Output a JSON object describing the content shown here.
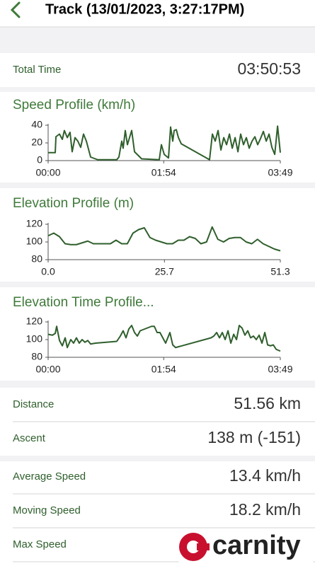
{
  "header": {
    "title": "Track (13/01/2023, 3:27:17PM)"
  },
  "total_time": {
    "label": "Total Time",
    "value": "03:50:53"
  },
  "chart_data": [
    {
      "type": "line",
      "title": "Speed Profile (km/h)",
      "color": "#2f5f2c",
      "x": [
        0,
        7,
        7.7,
        11.2,
        14,
        16,
        18.9,
        21.6,
        23.7,
        26.5,
        29.3,
        32.1,
        34.9,
        37.7,
        41.9,
        48.9,
        67.7,
        69.8,
        72.6,
        74,
        76.1,
        78.2,
        80.3,
        82.4,
        85.2,
        92.2,
        109.6,
        111.7,
        114.5,
        118.7,
        120.8,
        122.9,
        124.3,
        126.4,
        128.5,
        131.3,
        159.2,
        162,
        164.8,
        167.6,
        170.4,
        173.2,
        176,
        178.8,
        181.6,
        184.4,
        187.2,
        189.9,
        192.7,
        195.5,
        198.3,
        201.1,
        203.9,
        206.7,
        209.5,
        212.3,
        215.1,
        217.9,
        220.7,
        223.5,
        226.3,
        229
      ],
      "values": [
        9,
        9,
        27,
        30,
        24,
        34,
        26,
        32,
        10,
        26,
        22,
        15,
        30,
        22,
        4,
        1,
        1,
        4,
        22,
        14,
        34,
        18,
        26,
        34,
        10,
        2,
        1,
        18,
        7,
        3,
        38,
        22,
        34,
        35,
        26,
        19,
        1,
        30,
        22,
        34,
        12,
        26,
        18,
        30,
        14,
        26,
        10,
        30,
        18,
        26,
        14,
        22,
        27,
        18,
        25,
        33,
        22,
        30,
        15,
        7,
        39,
        9
      ],
      "xlim": [
        0,
        229
      ],
      "xticks": [
        {
          "value": 0,
          "label": "00:00"
        },
        {
          "value": 114,
          "label": "01:54"
        },
        {
          "value": 229,
          "label": "03:49"
        }
      ],
      "ylim": [
        0,
        40
      ],
      "yticks": [
        0,
        20,
        40
      ]
    },
    {
      "type": "line",
      "title": "Elevation Profile (m)",
      "color": "#2f5f2c",
      "x": [
        0,
        1.25,
        2.5,
        3.75,
        5,
        6.25,
        7.5,
        8.75,
        10,
        11.25,
        12.5,
        13.75,
        15,
        16.25,
        17.5,
        18.75,
        20,
        21.25,
        22.5,
        23.75,
        25,
        26.25,
        27.5,
        28.75,
        30,
        31.25,
        32.5,
        33.75,
        35,
        36.25,
        37.5,
        38.75,
        40,
        41.25,
        42.5,
        43.75,
        45,
        46.25,
        47.5,
        48.75,
        50,
        51.3
      ],
      "values": [
        107,
        110,
        106,
        98,
        97,
        97,
        99,
        101,
        98,
        98,
        98,
        98,
        102,
        98,
        98,
        110,
        114,
        116,
        105,
        102,
        100,
        98,
        98,
        102,
        102,
        106,
        104,
        98,
        100,
        117,
        103,
        100,
        104,
        105,
        105,
        100,
        98,
        103,
        98,
        95,
        92,
        90
      ],
      "xlim": [
        0,
        51.3
      ],
      "xticks": [
        {
          "value": 0,
          "label": "0.0"
        },
        25.7,
        51.3
      ],
      "ylim": [
        80,
        120
      ],
      "yticks": [
        80,
        100,
        120
      ]
    },
    {
      "type": "line",
      "title": "Elevation Time Profile...",
      "color": "#2f5f2c",
      "x": [
        0,
        4.2,
        7,
        8.4,
        11.2,
        14,
        16.8,
        18.9,
        22.3,
        25.1,
        27.9,
        30.7,
        33.5,
        36.3,
        39.1,
        41.9,
        46.8,
        67.7,
        71.2,
        74,
        76.8,
        79.6,
        82.4,
        85.2,
        88,
        90.8,
        102,
        104.7,
        107.5,
        110.3,
        113.1,
        115.9,
        120.1,
        122.9,
        125.7,
        160.6,
        163.4,
        166.2,
        169,
        171.8,
        174.6,
        177.4,
        180.2,
        183,
        185.8,
        188.5,
        191.3,
        194.1,
        196.9,
        199.7,
        202.5,
        205.3,
        208.1,
        210.9,
        213.7,
        216.5,
        219.3,
        222.1,
        224.9,
        229
      ],
      "values": [
        106,
        105,
        107,
        115,
        99,
        93,
        102,
        91,
        100,
        96,
        102,
        96,
        100,
        97,
        99,
        95,
        96,
        98,
        104,
        110,
        102,
        112,
        116,
        108,
        104,
        110,
        115,
        115,
        108,
        108,
        102,
        96,
        108,
        94,
        91,
        102,
        104,
        108,
        102,
        108,
        100,
        110,
        96,
        106,
        100,
        116,
        113,
        105,
        110,
        102,
        104,
        100,
        105,
        96,
        108,
        94,
        93,
        94,
        89,
        87
      ],
      "xlim": [
        0,
        229
      ],
      "xticks": [
        {
          "value": 0,
          "label": "00:00"
        },
        {
          "value": 114,
          "label": "01:54"
        },
        {
          "value": 229,
          "label": "03:49"
        }
      ],
      "ylim": [
        80,
        120
      ],
      "yticks": [
        80,
        100,
        120
      ]
    }
  ],
  "stats": [
    {
      "label": "Distance",
      "value": "51.56 km"
    },
    {
      "label": "Ascent",
      "value": "138 m (-151)"
    },
    {
      "label": "Average Speed",
      "value": "13.4 km/h"
    },
    {
      "label": "Moving Speed",
      "value": "18.2 km/h"
    },
    {
      "label": "Max Speed"
    }
  ],
  "watermark": "carnity"
}
